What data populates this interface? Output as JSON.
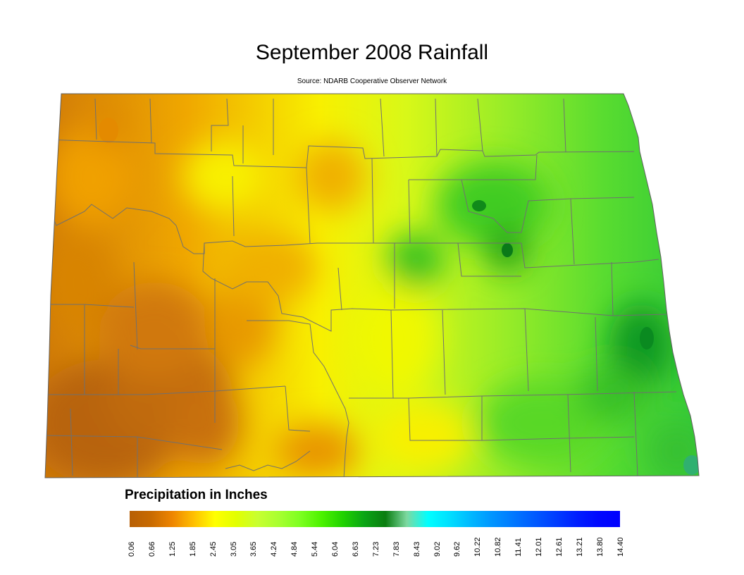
{
  "title": "September 2008 Rainfall",
  "subtitle": "Source: NDARB Cooperative Observer Network",
  "legend": {
    "title": "Precipitation in Inches",
    "ticks": [
      "0.06",
      "0.66",
      "1.25",
      "1.85",
      "2.45",
      "3.05",
      "3.65",
      "4.24",
      "4.84",
      "5.44",
      "6.04",
      "6.63",
      "7.23",
      "7.83",
      "8.43",
      "9.02",
      "9.62",
      "10.22",
      "10.82",
      "11.41",
      "12.01",
      "12.61",
      "13.21",
      "13.80",
      "14.40"
    ],
    "colors": [
      "#b75f05",
      "#c86a00",
      "#ee8500",
      "#ffbf00",
      "#ffff00",
      "#e2ff00",
      "#c8ff30",
      "#a8ff30",
      "#7dff20",
      "#4cf200",
      "#20d200",
      "#0aa515",
      "#0a7d10",
      "#7dd9a0",
      "#00ffff",
      "#00dfff",
      "#00b8ff",
      "#0095ff",
      "#0078ff",
      "#005aff",
      "#003cff",
      "#001eff",
      "#0008ff",
      "#0000ff"
    ]
  },
  "map": {
    "colors": {
      "drought_brown": "#b86a10",
      "orange": "#f0a000",
      "yellow": "#f8f400",
      "lime": "#c8f428",
      "light_green": "#78e828",
      "green": "#20c41a",
      "dark_green": "#109a20",
      "teal": "#30c070",
      "county_line": "#707070"
    }
  }
}
